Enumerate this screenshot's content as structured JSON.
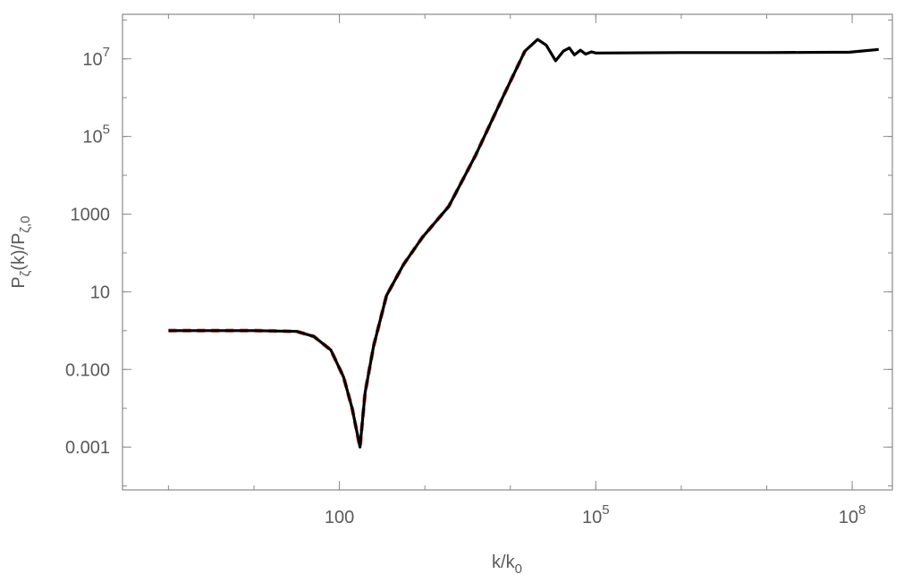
{
  "chart_data": {
    "type": "line",
    "xlabel": "k/k_{0}",
    "ylabel": "P_{ζ}(k)/P_{ζ,0}",
    "log_x": true,
    "log_y": true,
    "xlim": [
      0.29,
      295000000.0
    ],
    "ylim": [
      7.9e-05,
      140000000.0
    ],
    "xticks": [
      100,
      {
        "value": 100000,
        "label": "10^5"
      },
      {
        "value": 100000000,
        "label": "10^8"
      }
    ],
    "yticks": [
      0.001,
      {
        "value": 0.1,
        "label": "0.100"
      },
      10,
      1000,
      {
        "value": 100000,
        "label": "10^5"
      },
      {
        "value": 10000000,
        "label": "10^7"
      }
    ],
    "series": [
      {
        "color": "#000000",
        "dash": false,
        "x": [
          1,
          3.16,
          10,
          31.6,
          50.1,
          79.4,
          112,
          141,
          174,
          200,
          251,
          355,
          562,
          933,
          1905,
          3890,
          8130,
          14800,
          20900,
          26300,
          33900,
          41700,
          49000,
          56200,
          66100,
          75900,
          89100,
          100000,
          1000000,
          10000000,
          93300000,
          204000000
        ],
        "values": [
          1,
          1,
          1,
          0.955,
          0.708,
          0.316,
          0.0631,
          0.01,
          0.001,
          0.0251,
          0.398,
          7.94,
          50.1,
          251,
          1585,
          31600,
          1000000,
          15800000,
          31600000,
          22400000,
          8910000,
          15800000,
          19100000,
          12600000,
          16600000,
          13200000,
          15100000,
          14100000,
          14500000,
          14500000,
          14800000,
          17400000
        ]
      },
      {
        "color": "#f08080",
        "dash": true,
        "x": [
          1,
          3.16,
          10,
          31.6,
          50.1,
          79.4,
          112,
          141,
          174,
          200,
          251,
          355,
          562,
          933,
          1905,
          3890,
          8130,
          14800
        ],
        "values": [
          1,
          1,
          1,
          0.955,
          0.708,
          0.316,
          0.0631,
          0.01,
          0.001,
          0.0251,
          0.398,
          7.94,
          50.1,
          251,
          1585,
          31600,
          1000000,
          15800000
        ]
      }
    ]
  }
}
